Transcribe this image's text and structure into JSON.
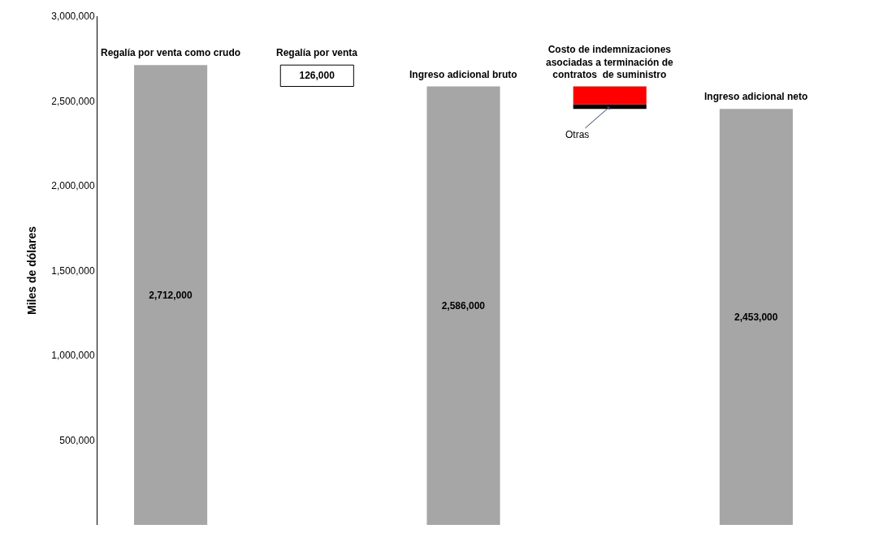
{
  "chart_data": {
    "type": "bar",
    "stacked": true,
    "categories": [
      "Regalía por venta como crudo",
      "Regalía por venta",
      "Ingreso adicional bruto",
      "Costo de indemnizaciones asociadas a terminación de contratos  de suministro",
      "Ingreso adicional neto"
    ],
    "series": [
      {
        "color": "#a6a6a6",
        "values": [
          2712000,
          null,
          2586000,
          null,
          2453000
        ],
        "base": [
          0,
          null,
          0,
          null,
          0
        ],
        "value_labels": [
          "2,712,000",
          null,
          "2,586,000",
          null,
          "2,453,000"
        ]
      },
      {
        "color": "#ffffff",
        "values": [
          null,
          126000,
          null,
          null,
          null
        ],
        "base": [
          null,
          2586000,
          null,
          null,
          null
        ],
        "value_labels": [
          null,
          "126,000",
          null,
          null,
          null
        ]
      },
      {
        "color": "#000000",
        "values": [
          null,
          null,
          null,
          28000,
          null
        ],
        "base": [
          null,
          null,
          null,
          2453000,
          null
        ]
      },
      {
        "color": "#ff0000",
        "values": [
          null,
          null,
          null,
          105000,
          null
        ],
        "base": [
          null,
          null,
          null,
          2481000,
          null
        ]
      }
    ],
    "ylabel": "Miles de dólares",
    "ylim": [
      0,
      3000000
    ],
    "yticks": [
      {
        "value": 500000,
        "label": "500,000"
      },
      {
        "value": 1000000,
        "label": "1,000,000"
      },
      {
        "value": 1500000,
        "label": "1,500,000"
      },
      {
        "value": 2000000,
        "label": "2,000,000"
      },
      {
        "value": 2500000,
        "label": "2,500,000"
      },
      {
        "value": 3000000,
        "label": "3,000,000"
      }
    ],
    "annotations": [
      {
        "text": "Otras",
        "x": "Costo de indemnizaciones asociadas a terminación de contratos  de suministro",
        "y": 2467000
      }
    ],
    "legend": false
  }
}
